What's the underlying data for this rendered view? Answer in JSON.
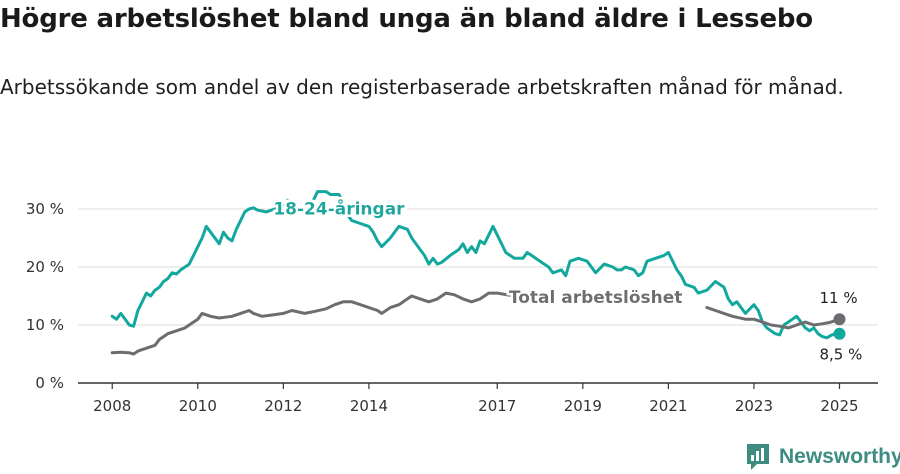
{
  "title": "Högre arbetslöshet bland unga än bland äldre i Lessebo",
  "subtitle": "Arbetssökande som andel av den registerbaserade arbetskraften månad för månad.",
  "brand": {
    "name": "Newsworthy",
    "icon": "newsworthy-logo-icon",
    "color": "#3d8c80"
  },
  "colors": {
    "youth": "#13a89e",
    "total": "#6d6c70",
    "grid": "#dcdcdc",
    "axis": "#333333"
  },
  "chart_data": {
    "type": "line",
    "ylim": [
      0,
      35
    ],
    "xlim": [
      2007.2,
      2025.9
    ],
    "yticks": [
      0,
      10,
      20,
      30
    ],
    "ytick_labels": [
      "0 %",
      "10 %",
      "20 %",
      "30 %"
    ],
    "xticks": [
      2008,
      2010,
      2012,
      2014,
      2017,
      2019,
      2021,
      2023,
      2025
    ],
    "xtick_labels": [
      "2008",
      "2010",
      "2012",
      "2014",
      "2017",
      "2019",
      "2021",
      "2023",
      "2025"
    ],
    "grid": true,
    "series": [
      {
        "name": "18-24-åringar",
        "color": "#13a89e",
        "end_label": "8,5 %",
        "points": [
          [
            2008.0,
            11.5
          ],
          [
            2008.1,
            11.0
          ],
          [
            2008.2,
            12.0
          ],
          [
            2008.3,
            11.0
          ],
          [
            2008.4,
            10.0
          ],
          [
            2008.5,
            9.8
          ],
          [
            2008.6,
            12.5
          ],
          [
            2008.7,
            14.0
          ],
          [
            2008.8,
            15.5
          ],
          [
            2008.9,
            15.0
          ],
          [
            2009.0,
            16.0
          ],
          [
            2009.1,
            16.5
          ],
          [
            2009.2,
            17.5
          ],
          [
            2009.3,
            18.0
          ],
          [
            2009.4,
            19.0
          ],
          [
            2009.5,
            18.8
          ],
          [
            2009.6,
            19.5
          ],
          [
            2009.7,
            20.0
          ],
          [
            2009.8,
            20.5
          ],
          [
            2009.9,
            22.0
          ],
          [
            2010.0,
            23.5
          ],
          [
            2010.1,
            25.0
          ],
          [
            2010.2,
            27.0
          ],
          [
            2010.3,
            26.0
          ],
          [
            2010.4,
            25.0
          ],
          [
            2010.5,
            24.0
          ],
          [
            2010.6,
            26.0
          ],
          [
            2010.7,
            25.0
          ],
          [
            2010.8,
            24.5
          ],
          [
            2010.9,
            26.5
          ],
          [
            2011.0,
            28.0
          ],
          [
            2011.1,
            29.5
          ],
          [
            2011.2,
            30.0
          ],
          [
            2011.3,
            30.2
          ],
          [
            2011.4,
            29.8
          ],
          [
            2011.6,
            29.5
          ],
          [
            2011.8,
            30.0
          ],
          [
            2012.0,
            30.5
          ],
          [
            2012.1,
            31.5
          ],
          [
            2012.2,
            30.0
          ],
          [
            2012.3,
            29.5
          ],
          [
            2012.4,
            30.0
          ],
          [
            2012.6,
            30.5
          ],
          [
            2012.7,
            31.5
          ],
          [
            2012.8,
            33.0
          ],
          [
            2013.0,
            33.0
          ],
          [
            2013.1,
            32.5
          ],
          [
            2013.3,
            32.5
          ],
          [
            2013.4,
            31.0
          ],
          [
            2013.5,
            29.0
          ],
          [
            2013.6,
            28.0
          ],
          [
            2013.8,
            27.5
          ],
          [
            2014.0,
            27.0
          ],
          [
            2014.1,
            26.0
          ],
          [
            2014.2,
            24.5
          ],
          [
            2014.3,
            23.5
          ],
          [
            2014.5,
            25.0
          ],
          [
            2014.7,
            27.0
          ],
          [
            2014.9,
            26.5
          ],
          [
            2015.0,
            25.0
          ],
          [
            2015.2,
            23.0
          ],
          [
            2015.3,
            22.0
          ],
          [
            2015.4,
            20.5
          ],
          [
            2015.5,
            21.5
          ],
          [
            2015.6,
            20.5
          ],
          [
            2015.7,
            20.8
          ],
          [
            2015.9,
            22.0
          ],
          [
            2016.0,
            22.5
          ],
          [
            2016.1,
            23.0
          ],
          [
            2016.2,
            24.0
          ],
          [
            2016.3,
            22.5
          ],
          [
            2016.4,
            23.5
          ],
          [
            2016.5,
            22.5
          ],
          [
            2016.6,
            24.5
          ],
          [
            2016.7,
            24.0
          ],
          [
            2016.8,
            25.5
          ],
          [
            2016.9,
            27.0
          ],
          [
            2017.0,
            25.5
          ],
          [
            2017.2,
            22.5
          ],
          [
            2017.4,
            21.5
          ],
          [
            2017.6,
            21.5
          ],
          [
            2017.7,
            22.5
          ],
          [
            2017.8,
            22.0
          ],
          [
            2018.0,
            21.0
          ],
          [
            2018.2,
            20.0
          ],
          [
            2018.3,
            19.0
          ],
          [
            2018.5,
            19.5
          ],
          [
            2018.6,
            18.5
          ],
          [
            2018.7,
            21.0
          ],
          [
            2018.9,
            21.5
          ],
          [
            2019.1,
            21.0
          ],
          [
            2019.2,
            20.0
          ],
          [
            2019.3,
            19.0
          ],
          [
            2019.5,
            20.5
          ],
          [
            2019.7,
            20.0
          ],
          [
            2019.8,
            19.5
          ],
          [
            2019.9,
            19.5
          ],
          [
            2020.0,
            20.0
          ],
          [
            2020.2,
            19.5
          ],
          [
            2020.3,
            18.5
          ],
          [
            2020.4,
            19.0
          ],
          [
            2020.5,
            21.0
          ],
          [
            2020.7,
            21.5
          ],
          [
            2020.9,
            22.0
          ],
          [
            2021.0,
            22.5
          ],
          [
            2021.1,
            21.0
          ],
          [
            2021.2,
            19.5
          ],
          [
            2021.3,
            18.5
          ],
          [
            2021.4,
            17.0
          ],
          [
            2021.6,
            16.5
          ],
          [
            2021.7,
            15.5
          ],
          [
            2021.9,
            16.0
          ],
          [
            2022.1,
            17.5
          ],
          [
            2022.3,
            16.5
          ],
          [
            2022.4,
            14.5
          ],
          [
            2022.5,
            13.5
          ],
          [
            2022.6,
            14.0
          ],
          [
            2022.7,
            13.0
          ],
          [
            2022.8,
            12.0
          ],
          [
            2023.0,
            13.5
          ],
          [
            2023.1,
            12.5
          ],
          [
            2023.2,
            10.5
          ],
          [
            2023.3,
            9.5
          ],
          [
            2023.4,
            9.0
          ],
          [
            2023.5,
            8.5
          ],
          [
            2023.6,
            8.3
          ],
          [
            2023.7,
            10.0
          ],
          [
            2023.8,
            10.5
          ],
          [
            2023.9,
            11.0
          ],
          [
            2024.0,
            11.5
          ],
          [
            2024.1,
            10.5
          ],
          [
            2024.2,
            9.5
          ],
          [
            2024.3,
            9.0
          ],
          [
            2024.4,
            9.5
          ],
          [
            2024.5,
            8.5
          ],
          [
            2024.6,
            8.0
          ],
          [
            2024.7,
            7.8
          ],
          [
            2024.8,
            8.2
          ],
          [
            2024.9,
            8.5
          ],
          [
            2025.0,
            8.5
          ]
        ]
      },
      {
        "name": "Total arbetslöshet",
        "color": "#6d6c70",
        "end_label": "11 %",
        "points": [
          [
            2008.0,
            5.2
          ],
          [
            2008.2,
            5.3
          ],
          [
            2008.4,
            5.2
          ],
          [
            2008.5,
            5.0
          ],
          [
            2008.6,
            5.5
          ],
          [
            2008.8,
            6.0
          ],
          [
            2009.0,
            6.5
          ],
          [
            2009.1,
            7.5
          ],
          [
            2009.3,
            8.5
          ],
          [
            2009.5,
            9.0
          ],
          [
            2009.7,
            9.5
          ],
          [
            2009.8,
            10.0
          ],
          [
            2010.0,
            11.0
          ],
          [
            2010.1,
            12.0
          ],
          [
            2010.3,
            11.5
          ],
          [
            2010.5,
            11.2
          ],
          [
            2010.8,
            11.5
          ],
          [
            2011.0,
            12.0
          ],
          [
            2011.2,
            12.5
          ],
          [
            2011.3,
            12.0
          ],
          [
            2011.5,
            11.5
          ],
          [
            2011.8,
            11.8
          ],
          [
            2012.0,
            12.0
          ],
          [
            2012.2,
            12.5
          ],
          [
            2012.5,
            12.0
          ],
          [
            2012.7,
            12.3
          ],
          [
            2013.0,
            12.8
          ],
          [
            2013.2,
            13.5
          ],
          [
            2013.4,
            14.0
          ],
          [
            2013.6,
            14.0
          ],
          [
            2013.8,
            13.5
          ],
          [
            2014.0,
            13.0
          ],
          [
            2014.2,
            12.5
          ],
          [
            2014.3,
            12.0
          ],
          [
            2014.5,
            13.0
          ],
          [
            2014.7,
            13.5
          ],
          [
            2014.9,
            14.5
          ],
          [
            2015.0,
            15.0
          ],
          [
            2015.2,
            14.5
          ],
          [
            2015.4,
            14.0
          ],
          [
            2015.6,
            14.5
          ],
          [
            2015.8,
            15.5
          ],
          [
            2016.0,
            15.2
          ],
          [
            2016.2,
            14.5
          ],
          [
            2016.4,
            14.0
          ],
          [
            2016.6,
            14.5
          ],
          [
            2016.8,
            15.5
          ],
          [
            2017.0,
            15.5
          ],
          [
            2017.4,
            15.0
          ],
          [
            2021.9,
            13.0
          ],
          [
            2022.1,
            12.5
          ],
          [
            2022.3,
            12.0
          ],
          [
            2022.5,
            11.5
          ],
          [
            2022.8,
            11.0
          ],
          [
            2023.0,
            11.0
          ],
          [
            2023.2,
            10.5
          ],
          [
            2023.4,
            10.0
          ],
          [
            2023.6,
            9.8
          ],
          [
            2023.8,
            9.5
          ],
          [
            2024.0,
            10.0
          ],
          [
            2024.2,
            10.5
          ],
          [
            2024.4,
            10.0
          ],
          [
            2024.6,
            10.2
          ],
          [
            2024.8,
            10.5
          ],
          [
            2025.0,
            11.0
          ]
        ]
      }
    ],
    "annotations": [
      {
        "text": "18-24-åringar",
        "series": "18-24-åringar",
        "x": 2013.3,
        "y": 30.1
      },
      {
        "text": "Total arbetslöshet",
        "series": "Total arbetslöshet",
        "x": 2019.3,
        "y": 14.8
      }
    ]
  }
}
